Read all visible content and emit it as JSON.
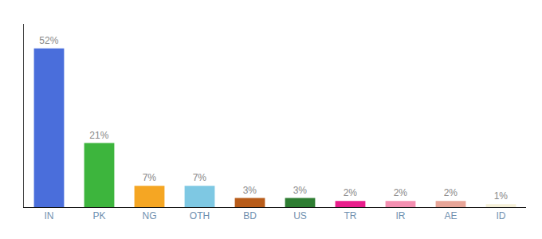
{
  "chart_data": {
    "type": "bar",
    "categories": [
      "IN",
      "PK",
      "NG",
      "OTH",
      "BD",
      "US",
      "TR",
      "IR",
      "AE",
      "ID"
    ],
    "values": [
      52,
      21,
      7,
      7,
      3,
      3,
      2,
      2,
      2,
      1
    ],
    "value_labels": [
      "52%",
      "21%",
      "7%",
      "7%",
      "3%",
      "3%",
      "2%",
      "2%",
      "2%",
      "1%"
    ],
    "colors": [
      "#4a6edb",
      "#3db53d",
      "#f5a623",
      "#7ec8e3",
      "#b85c1a",
      "#2e7d32",
      "#e91e8c",
      "#f48fb1",
      "#e8a598",
      "#f5f0d8"
    ],
    "ylim": [
      0,
      60
    ],
    "data_labels": true,
    "tick_labels": "x",
    "grid": false
  }
}
